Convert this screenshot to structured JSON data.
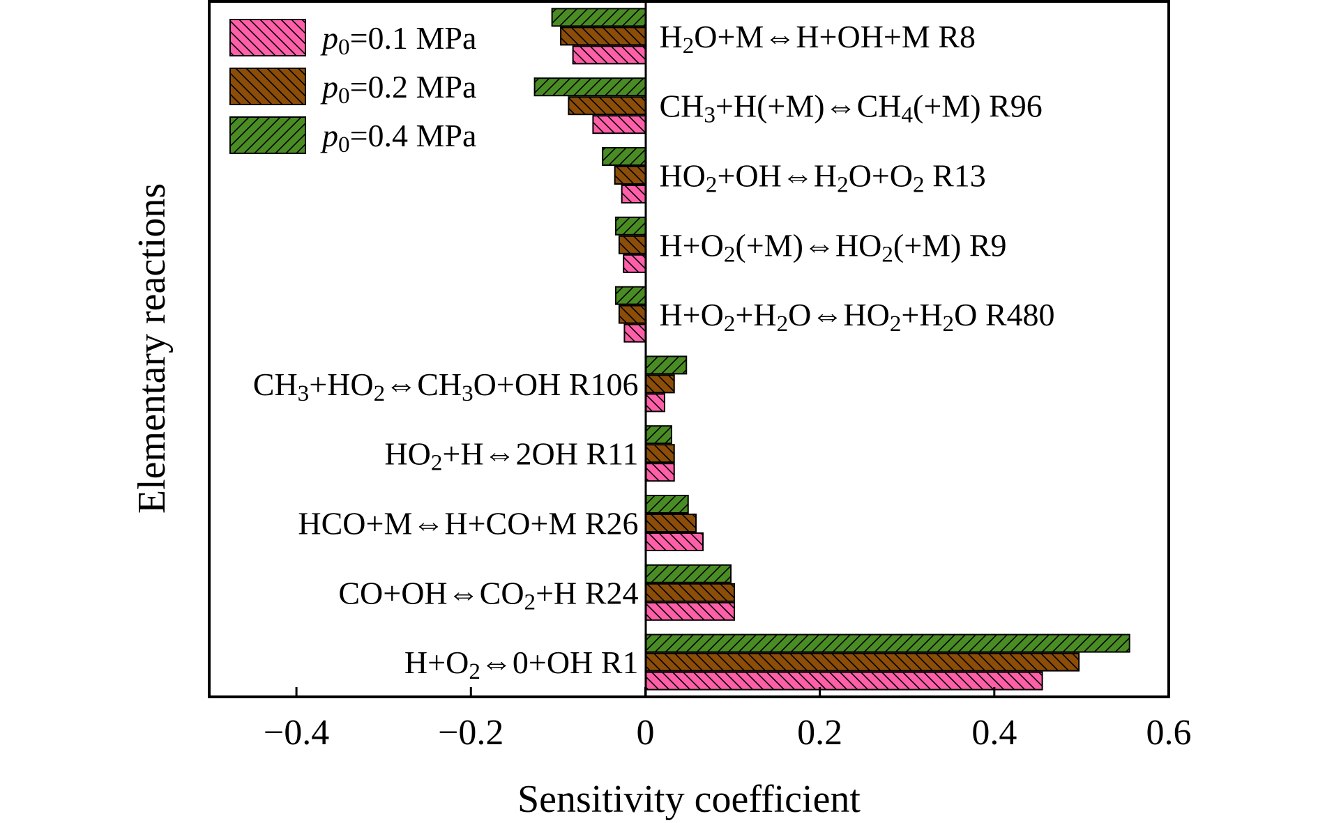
{
  "chart_data": {
    "type": "bar",
    "orientation": "horizontal",
    "xlabel": "Sensitivity coefficient",
    "ylabel": "Elementary reactions",
    "xlim": [
      -0.5,
      0.6
    ],
    "x_ticks": [
      -0.4,
      -0.2,
      0,
      0.2,
      0.4,
      0.6
    ],
    "x_tick_labels": [
      "−0.4",
      "−0.2",
      "0",
      "0.2",
      "0.4",
      "0.6"
    ],
    "grid": false,
    "legend_position": "top-left",
    "categories": [
      [
        {
          "t": "H"
        },
        {
          "t": "2",
          "s": "sub"
        },
        {
          "t": "O+M⇔H+OH+M R8"
        }
      ],
      [
        {
          "t": "CH"
        },
        {
          "t": "3",
          "s": "sub"
        },
        {
          "t": "+H(+M)⇔CH"
        },
        {
          "t": "4",
          "s": "sub"
        },
        {
          "t": "(+M) R96"
        }
      ],
      [
        {
          "t": "HO"
        },
        {
          "t": "2",
          "s": "sub"
        },
        {
          "t": "+OH⇔H"
        },
        {
          "t": "2",
          "s": "sub"
        },
        {
          "t": "O+O"
        },
        {
          "t": "2",
          "s": "sub"
        },
        {
          "t": " R13"
        }
      ],
      [
        {
          "t": "H+O"
        },
        {
          "t": "2",
          "s": "sub"
        },
        {
          "t": "(+M)⇔HO"
        },
        {
          "t": "2",
          "s": "sub"
        },
        {
          "t": "(+M) R9"
        }
      ],
      [
        {
          "t": "H+O"
        },
        {
          "t": "2",
          "s": "sub"
        },
        {
          "t": "+H"
        },
        {
          "t": "2",
          "s": "sub"
        },
        {
          "t": "O⇔HO"
        },
        {
          "t": "2",
          "s": "sub"
        },
        {
          "t": "+H"
        },
        {
          "t": "2",
          "s": "sub"
        },
        {
          "t": "O R480"
        }
      ],
      [
        {
          "t": "CH"
        },
        {
          "t": "3",
          "s": "sub"
        },
        {
          "t": "+HO"
        },
        {
          "t": "2",
          "s": "sub"
        },
        {
          "t": "⇔CH"
        },
        {
          "t": "3",
          "s": "sub"
        },
        {
          "t": "O+OH R106"
        }
      ],
      [
        {
          "t": "HO"
        },
        {
          "t": "2",
          "s": "sub"
        },
        {
          "t": "+H⇔2OH R11"
        }
      ],
      [
        {
          "t": "HCO+M⇔H+CO+M R26"
        }
      ],
      [
        {
          "t": "CO+OH⇔CO"
        },
        {
          "t": "2",
          "s": "sub"
        },
        {
          "t": "+H R24"
        }
      ],
      [
        {
          "t": "H+O"
        },
        {
          "t": "2",
          "s": "sub"
        },
        {
          "t": "⇔0+OH R1"
        }
      ]
    ],
    "series": [
      {
        "name": [
          {
            "t": "p",
            "s": "it"
          },
          {
            "t": "0",
            "s": "sub"
          },
          {
            "t": "=0.1 MPa"
          }
        ],
        "color": "#ff5fa8",
        "values": [
          -0.083,
          -0.06,
          -0.027,
          -0.025,
          -0.024,
          0.022,
          0.033,
          0.066,
          0.102,
          0.455
        ]
      },
      {
        "name": [
          {
            "t": "p",
            "s": "it"
          },
          {
            "t": "0",
            "s": "sub"
          },
          {
            "t": "=0.2 MPa"
          }
        ],
        "color": "#8b4d08",
        "values": [
          -0.097,
          -0.088,
          -0.035,
          -0.03,
          -0.03,
          0.033,
          0.033,
          0.058,
          0.102,
          0.497
        ]
      },
      {
        "name": [
          {
            "t": "p",
            "s": "it"
          },
          {
            "t": "0",
            "s": "sub"
          },
          {
            "t": "=0.4 MPa"
          }
        ],
        "color": "#4a8c24",
        "values": [
          -0.107,
          -0.127,
          -0.049,
          -0.034,
          -0.034,
          0.047,
          0.03,
          0.049,
          0.098,
          0.555
        ]
      }
    ]
  }
}
